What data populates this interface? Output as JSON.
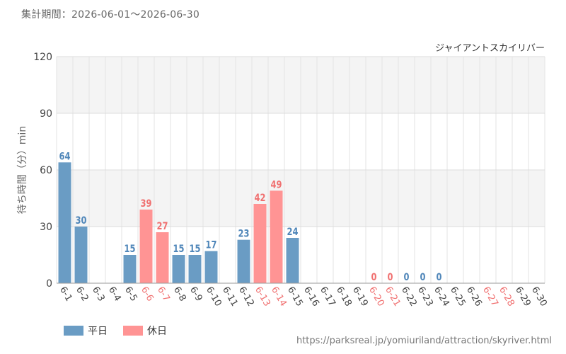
{
  "header": {
    "period_label": "集計期間：2026-06-01～2026-06-30"
  },
  "colors": {
    "weekday": "#6a9cc4",
    "holiday": "#ff9494",
    "weekday_label": "#4f86b9",
    "holiday_label": "#f07070"
  },
  "legend": {
    "weekday_label": "平日",
    "holiday_label": "休日"
  },
  "footer": {
    "source_url": "https://parksreal.jp/yomiuriland/attraction/skyriver.html"
  },
  "chart_data": {
    "type": "bar",
    "title": "ジャイアントスカイリバー",
    "ylabel": "待ち時間（分）min",
    "xlabel": "",
    "ylim": [
      0,
      120
    ],
    "yticks": [
      0,
      30,
      60,
      90,
      120
    ],
    "grid": true,
    "legend_position": "bottom-left",
    "categories": [
      "6-1",
      "6-2",
      "6-3",
      "6-4",
      "6-5",
      "6-6",
      "6-7",
      "6-8",
      "6-9",
      "6-10",
      "6-11",
      "6-12",
      "6-13",
      "6-14",
      "6-15",
      "6-16",
      "6-17",
      "6-18",
      "6-19",
      "6-20",
      "6-21",
      "6-22",
      "6-23",
      "6-24",
      "6-25",
      "6-26",
      "6-27",
      "6-28",
      "6-29",
      "6-30"
    ],
    "values": [
      64,
      30,
      null,
      null,
      15,
      39,
      27,
      15,
      15,
      17,
      null,
      23,
      42,
      49,
      24,
      null,
      null,
      null,
      null,
      0,
      0,
      0,
      0,
      0,
      null,
      null,
      null,
      null,
      null,
      null
    ],
    "holidays": [
      false,
      false,
      false,
      false,
      false,
      true,
      true,
      false,
      false,
      false,
      false,
      false,
      true,
      true,
      false,
      false,
      false,
      false,
      false,
      true,
      true,
      false,
      false,
      false,
      false,
      false,
      true,
      true,
      false,
      false
    ]
  }
}
